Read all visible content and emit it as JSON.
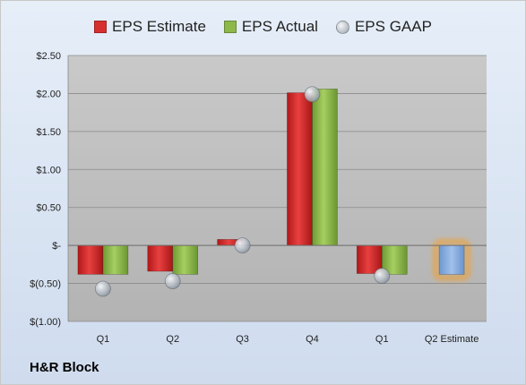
{
  "chart_data": {
    "type": "bar",
    "categories": [
      "Q1",
      "Q2",
      "Q3",
      "Q4",
      "Q1",
      "Q2 Estimate"
    ],
    "series": [
      {
        "name": "EPS Estimate",
        "type": "bar",
        "color": "#d62f2f",
        "values": [
          -0.38,
          -0.34,
          0.08,
          2.01,
          -0.37,
          null
        ]
      },
      {
        "name": "EPS Actual",
        "type": "bar",
        "color": "#8db84a",
        "values": [
          -0.38,
          -0.38,
          0.0,
          2.06,
          -0.38,
          null
        ]
      },
      {
        "name": "EPS GAAP",
        "type": "scatter",
        "color": "#b4bcc6",
        "values": [
          -0.57,
          -0.47,
          0.0,
          1.99,
          -0.4,
          null
        ]
      },
      {
        "name": "",
        "type": "estimate",
        "color": "#7fa8dc",
        "values": [
          null,
          null,
          null,
          null,
          null,
          -0.38
        ]
      }
    ],
    "ylim": [
      -1.0,
      2.5
    ],
    "yticks": [
      2.5,
      2.0,
      1.5,
      1.0,
      0.5,
      0.0,
      -0.5,
      -1.0
    ],
    "ytick_labels": [
      "$2.50",
      "$2.00",
      "$1.50",
      "$1.00",
      "$0.50",
      "$-",
      "$(0.50)",
      "$(1.00)"
    ],
    "grid": true,
    "legend_position": "top",
    "company": "H&R Block"
  }
}
